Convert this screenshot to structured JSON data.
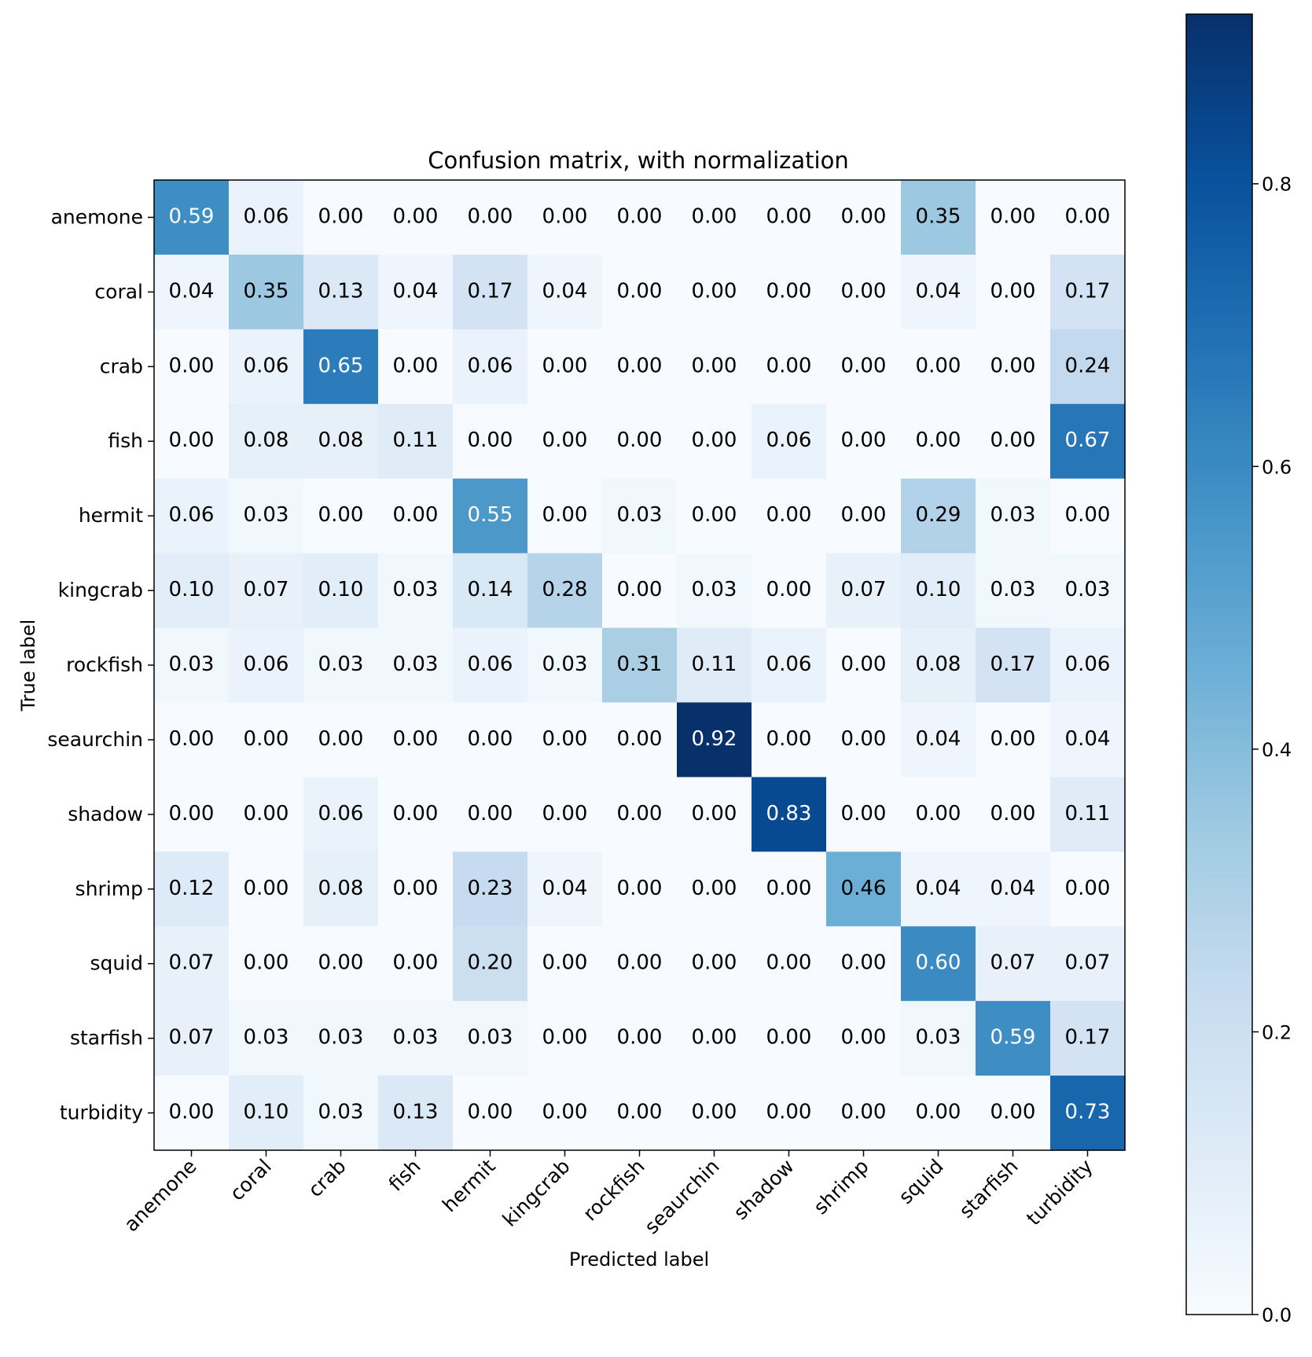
{
  "chart_data": {
    "type": "heatmap",
    "title": "Confusion matrix, with normalization",
    "xlabel": "Predicted label",
    "ylabel": "True label",
    "categories": [
      "anemone",
      "coral",
      "crab",
      "fish",
      "hermit",
      "kingcrab",
      "rockfish",
      "seaurchin",
      "shadow",
      "shrimp",
      "squid",
      "starfish",
      "turbidity"
    ],
    "values": [
      [
        0.59,
        0.06,
        0.0,
        0.0,
        0.0,
        0.0,
        0.0,
        0.0,
        0.0,
        0.0,
        0.35,
        0.0,
        0.0
      ],
      [
        0.04,
        0.35,
        0.13,
        0.04,
        0.17,
        0.04,
        0.0,
        0.0,
        0.0,
        0.0,
        0.04,
        0.0,
        0.17
      ],
      [
        0.0,
        0.06,
        0.65,
        0.0,
        0.06,
        0.0,
        0.0,
        0.0,
        0.0,
        0.0,
        0.0,
        0.0,
        0.24
      ],
      [
        0.0,
        0.08,
        0.08,
        0.11,
        0.0,
        0.0,
        0.0,
        0.0,
        0.06,
        0.0,
        0.0,
        0.0,
        0.67
      ],
      [
        0.06,
        0.03,
        0.0,
        0.0,
        0.55,
        0.0,
        0.03,
        0.0,
        0.0,
        0.0,
        0.29,
        0.03,
        0.0
      ],
      [
        0.1,
        0.07,
        0.1,
        0.03,
        0.14,
        0.28,
        0.0,
        0.03,
        0.0,
        0.07,
        0.1,
        0.03,
        0.03
      ],
      [
        0.03,
        0.06,
        0.03,
        0.03,
        0.06,
        0.03,
        0.31,
        0.11,
        0.06,
        0.0,
        0.08,
        0.17,
        0.06
      ],
      [
        0.0,
        0.0,
        0.0,
        0.0,
        0.0,
        0.0,
        0.0,
        0.92,
        0.0,
        0.0,
        0.04,
        0.0,
        0.04
      ],
      [
        0.0,
        0.0,
        0.06,
        0.0,
        0.0,
        0.0,
        0.0,
        0.0,
        0.83,
        0.0,
        0.0,
        0.0,
        0.11
      ],
      [
        0.12,
        0.0,
        0.08,
        0.0,
        0.23,
        0.04,
        0.0,
        0.0,
        0.0,
        0.46,
        0.04,
        0.04,
        0.0
      ],
      [
        0.07,
        0.0,
        0.0,
        0.0,
        0.2,
        0.0,
        0.0,
        0.0,
        0.0,
        0.0,
        0.6,
        0.07,
        0.07
      ],
      [
        0.07,
        0.03,
        0.03,
        0.03,
        0.03,
        0.0,
        0.0,
        0.0,
        0.0,
        0.0,
        0.03,
        0.59,
        0.17
      ],
      [
        0.0,
        0.1,
        0.03,
        0.13,
        0.0,
        0.0,
        0.0,
        0.0,
        0.0,
        0.0,
        0.0,
        0.0,
        0.73
      ]
    ],
    "colormap": "Blues",
    "vmin": 0.0,
    "vmax": 0.92,
    "text_threshold": 0.46,
    "colorbar": {
      "ticks": [
        0.0,
        0.2,
        0.4,
        0.6,
        0.8
      ],
      "tick_labels": [
        "0.0",
        "0.2",
        "0.4",
        "0.6",
        "0.8"
      ]
    },
    "grid": false
  }
}
